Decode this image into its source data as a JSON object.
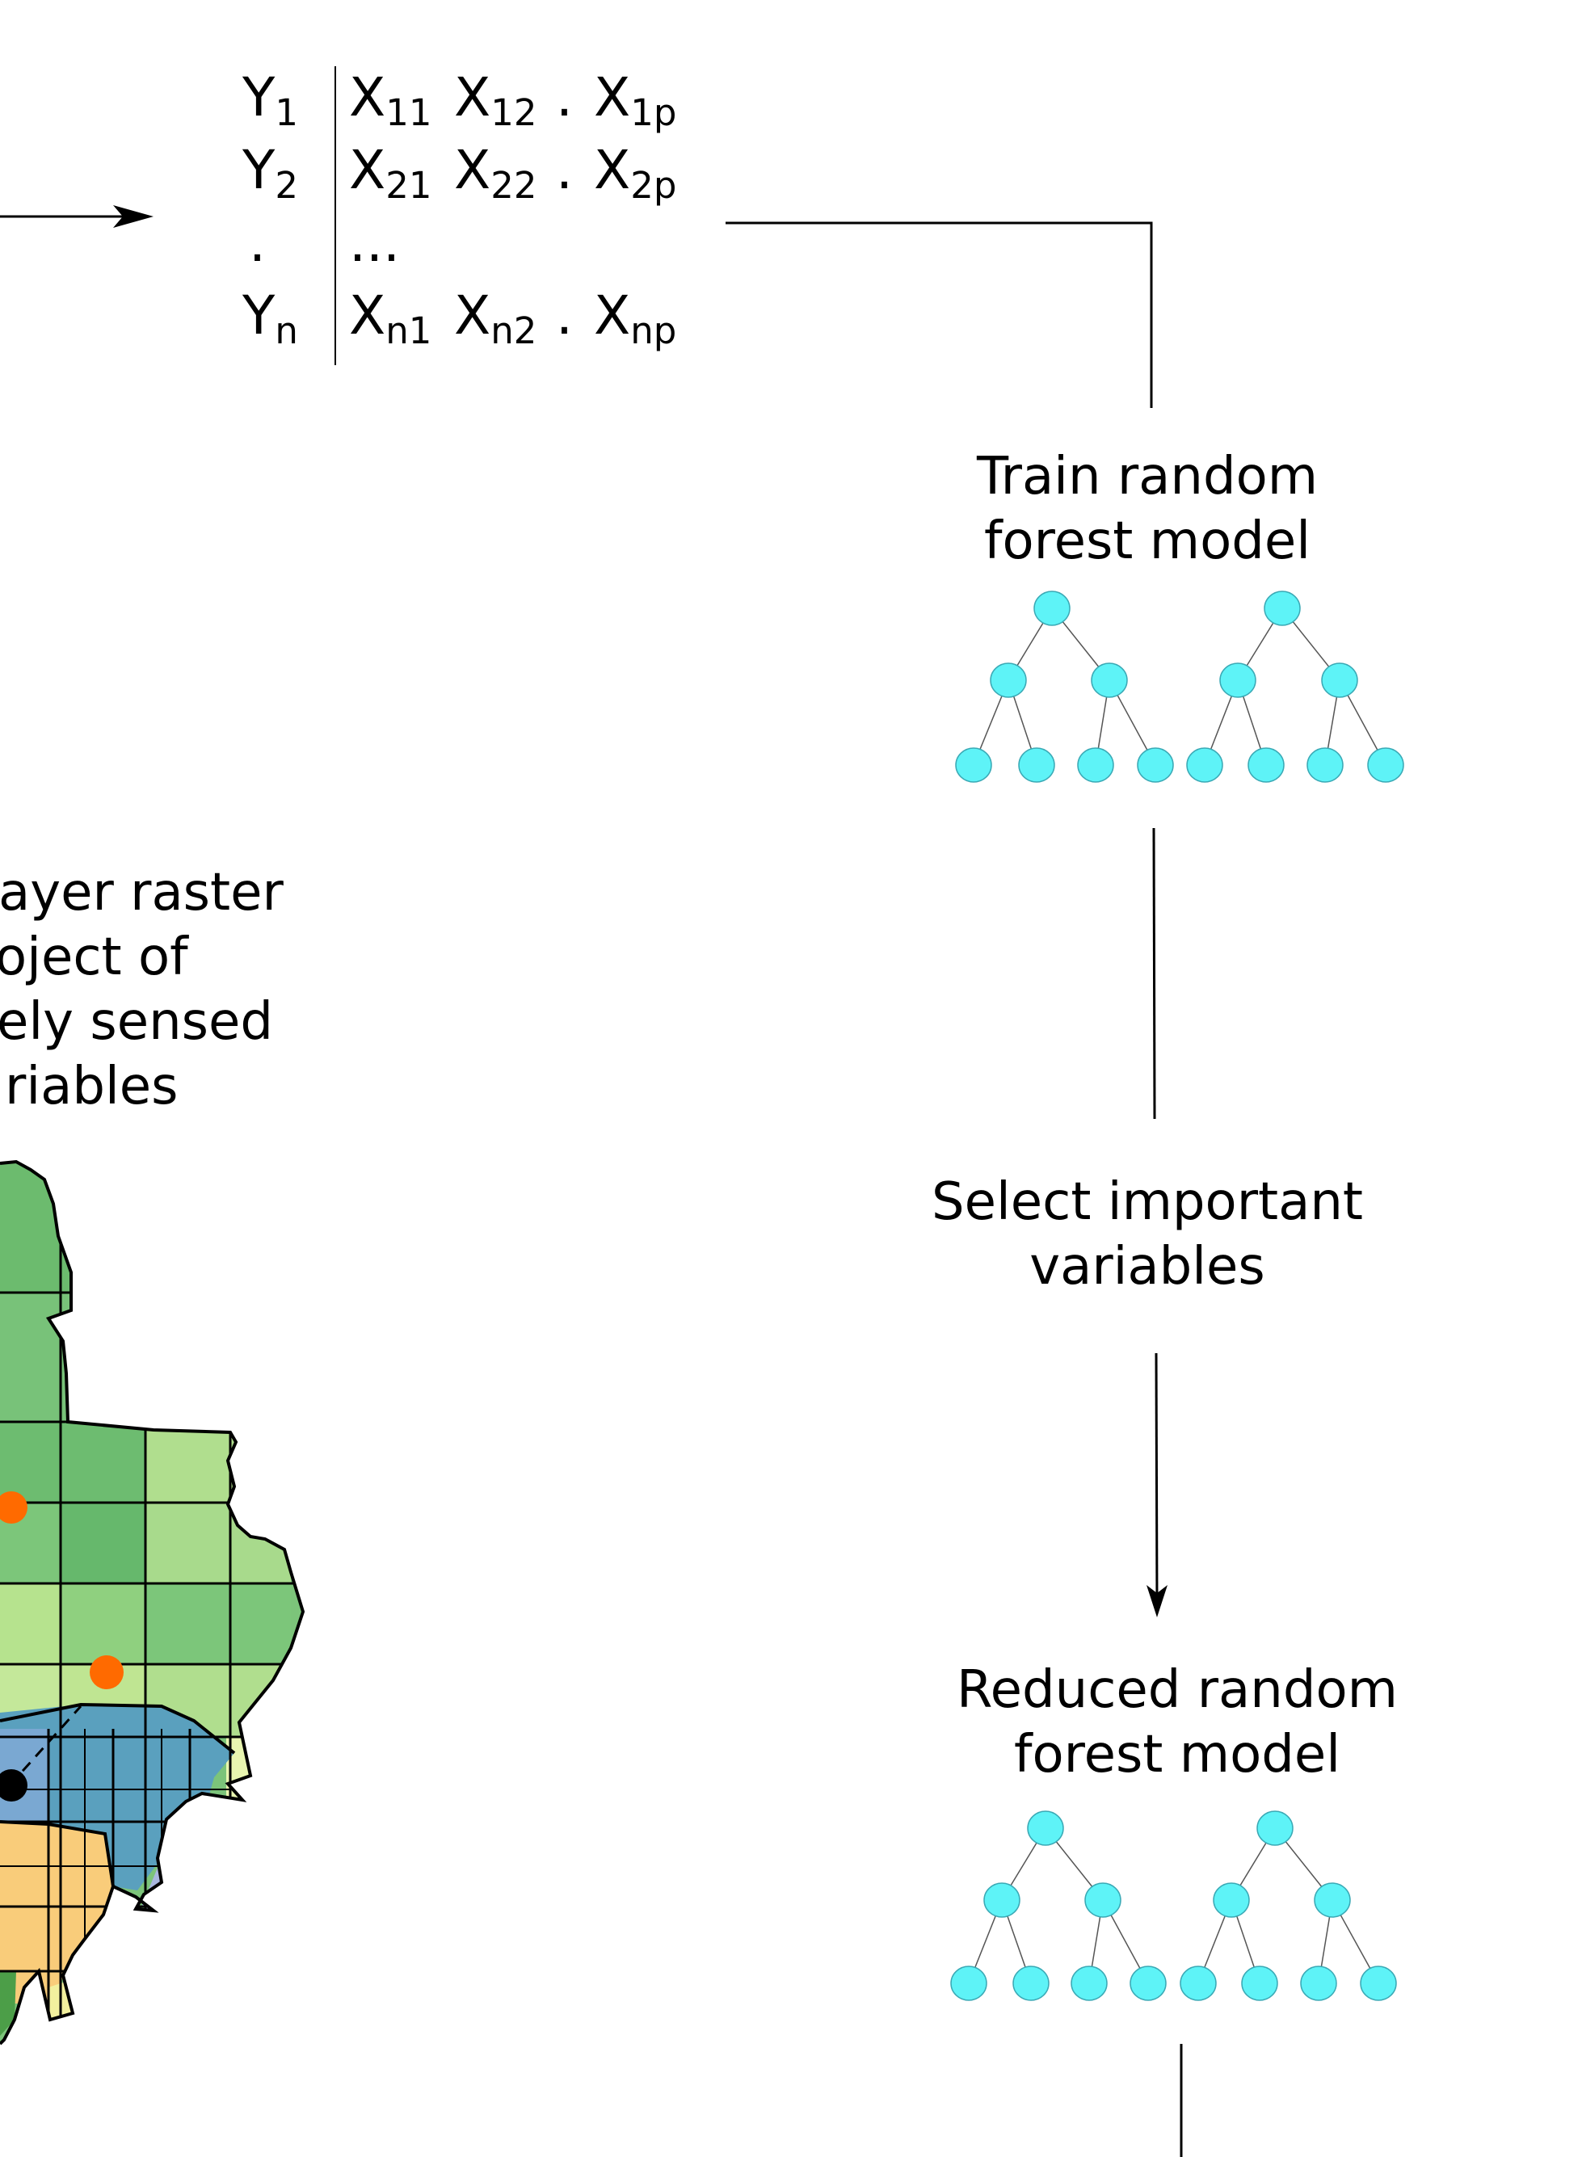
{
  "matrix": {
    "rows": [
      {
        "y": "Y",
        "y_sub": "1",
        "cells": [
          [
            "X",
            "11"
          ],
          [
            "X",
            "12"
          ],
          [
            ".",
            ""
          ],
          [
            "X",
            "1p"
          ]
        ]
      },
      {
        "y": "Y",
        "y_sub": "2",
        "cells": [
          [
            "X",
            "21"
          ],
          [
            "X",
            "22"
          ],
          [
            ".",
            ""
          ],
          [
            "X",
            "2p"
          ]
        ]
      },
      {
        "y": ".",
        "y_sub": "",
        "cells": [
          [
            "...",
            ""
          ]
        ]
      },
      {
        "y": "Y",
        "y_sub": "n",
        "cells": [
          [
            "X",
            "n1"
          ],
          [
            "X",
            "n2"
          ],
          [
            ".",
            ""
          ],
          [
            "X",
            "np"
          ]
        ]
      }
    ]
  },
  "steps": {
    "train": {
      "line1": "Train random",
      "line2": "forest model"
    },
    "select": {
      "line1": "Select important",
      "line2": "variables"
    },
    "reduced": {
      "line1": "Reduced random",
      "line2": "forest model"
    }
  },
  "raster_label": {
    "lines": [
      "ayer raster",
      "oject of",
      "ely sensed",
      "riables"
    ]
  },
  "colors": {
    "tree_node": "#5ef3f7",
    "tree_stroke": "#3aa9b5",
    "point_orange": "#ff6a00",
    "point_black": "#000000"
  }
}
